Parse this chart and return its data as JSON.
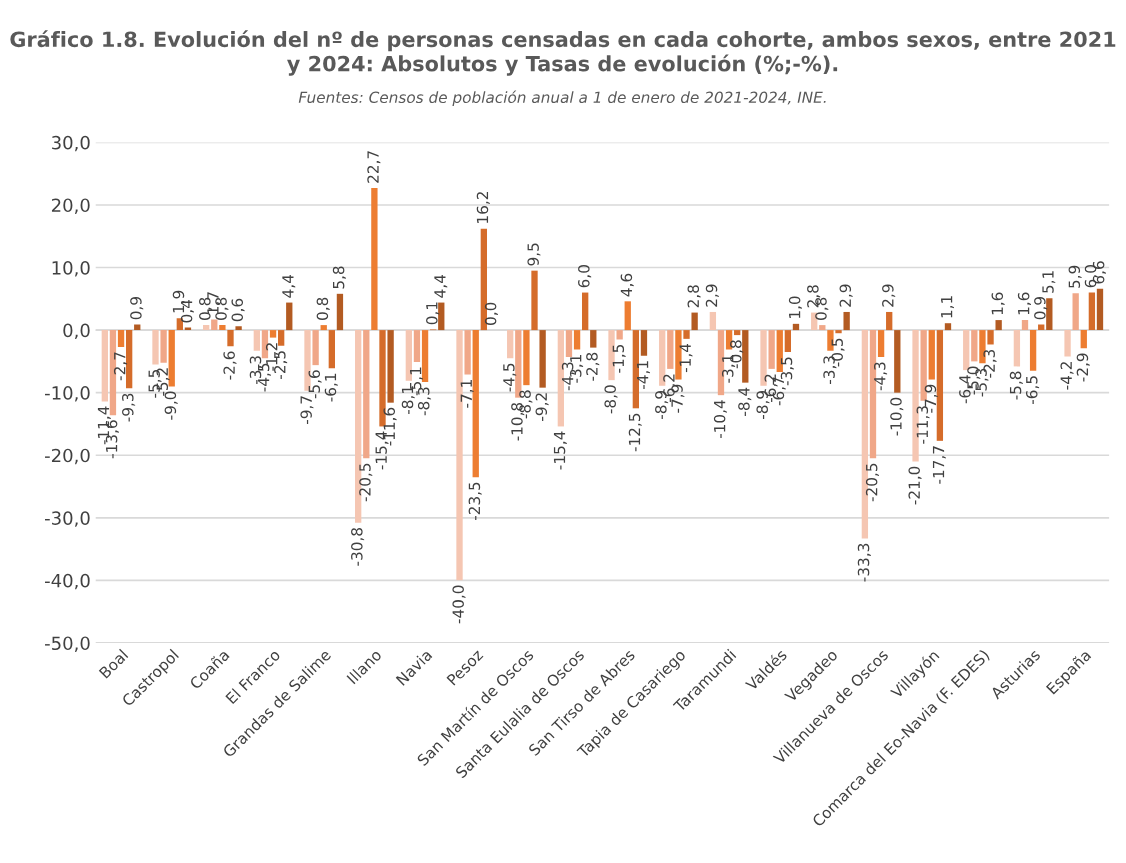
{
  "chart_data": {
    "type": "bar",
    "title": "Gráfico 1.8. Evolución del nº de personas censadas en cada cohorte, ambos sexos, entre 2021 y 2024: Absolutos y Tasas de evolución (%;-%).",
    "subtitle": "Fuentes: Censos de población anual a 1 de enero de 2021-2024, INE.",
    "categories": [
      "Boal",
      "Castropol",
      "Coaña",
      "El Franco",
      "Grandas de Salime",
      "Illano",
      "Navia",
      "Pesoz",
      "San Martín de Oscos",
      "Santa Eulalia de Oscos",
      "San Tirso de Abres",
      "Tapia de Casariego",
      "Taramundi",
      "Valdés",
      "Vegadeo",
      "Villanueva de Oscos",
      "Villayón",
      "Comarca del Eo-Navia (F. EDES)",
      "Asturias",
      "España"
    ],
    "series": [
      {
        "color": "#f5c6b2",
        "values": [
          -11.4,
          -5.5,
          0.8,
          -3.3,
          -9.7,
          -30.8,
          -8.1,
          -40.0,
          -4.5,
          -15.4,
          -8.0,
          -8.9,
          2.9,
          -8.9,
          2.8,
          -33.3,
          -21.0,
          -6.4,
          -5.8,
          -4.2
        ],
        "value_labels": [
          "-11,4",
          "-5,5",
          "0,8",
          "-3,3",
          "-9,7",
          "-30,8",
          "-8,1",
          "-40,0",
          "-4,5",
          "-15,4",
          "-8,0",
          "-8,9",
          "2,9",
          "-8,9",
          "2,8",
          "-33,3",
          "-21,0",
          "-6,4",
          "-5,8",
          "-4,2"
        ]
      },
      {
        "color": "#f0a788",
        "values": [
          -13.6,
          -5.2,
          1.7,
          -4.5,
          -5.6,
          -20.5,
          -5.1,
          -7.1,
          -10.8,
          -4.3,
          -1.5,
          -6.2,
          -10.4,
          -6.2,
          0.8,
          -20.5,
          -11.3,
          -5.0,
          1.6,
          5.9
        ],
        "value_labels": [
          "-13,6",
          "-5,2",
          "1,7",
          "-4,5",
          "-5,6",
          "-20,5",
          "-5,1",
          "-7,1",
          "-10,8",
          "-4,3",
          "-1,5",
          "-6,2",
          "-10,4",
          "-6,2",
          "0,8",
          "-20,5",
          "-11,3",
          "-5,0",
          "1,6",
          "5,9"
        ]
      },
      {
        "color": "#ed7d31",
        "values": [
          -2.7,
          -9.0,
          0.8,
          -1.2,
          0.8,
          22.7,
          -8.3,
          -23.5,
          -8.8,
          -3.1,
          4.6,
          -7.9,
          -3.1,
          -6.7,
          -3.3,
          -4.3,
          -7.9,
          -5.3,
          -6.5,
          -2.9
        ],
        "value_labels": [
          "-2,7",
          "-9,0",
          "0,8",
          "-1,2",
          "0,8",
          "22,7",
          "-8,3",
          "-23,5",
          "-8,8",
          "-3,1",
          "4,6",
          "-7,9",
          "-3,1",
          "-6,7",
          "-3,3",
          "-4,3",
          "-7,9",
          "-5,3",
          "-6,5",
          "-2,9"
        ]
      },
      {
        "color": "#d56c2a",
        "values": [
          -9.3,
          1.9,
          -2.6,
          -2.5,
          -6.1,
          -15.4,
          0.1,
          16.2,
          9.5,
          6.0,
          -12.5,
          -1.4,
          -0.8,
          -3.5,
          -0.5,
          2.9,
          -17.7,
          -2.3,
          0.9,
          6.0
        ],
        "value_labels": [
          "-9,3",
          "1,9",
          "-2,6",
          "-2,5",
          "-6,1",
          "-15,4",
          "0,1",
          "16,2",
          "9,5",
          "6,0",
          "-12,5",
          "-1,4",
          "-0,8",
          "-3,5",
          "-0,5",
          "2,9",
          "-17,7",
          "-2,3",
          "0,9",
          "6,0"
        ]
      },
      {
        "color": "#b35b22",
        "values": [
          0.9,
          0.4,
          0.6,
          4.4,
          5.8,
          -11.6,
          4.4,
          0.0,
          -9.2,
          -2.8,
          -4.1,
          2.8,
          -8.4,
          1.0,
          2.9,
          -10.0,
          1.1,
          1.6,
          5.1,
          6.6
        ],
        "value_labels": [
          "0,9",
          "0,4",
          "0,6",
          "4,4",
          "5,8",
          "-11,6",
          "4,4",
          "0,0",
          "-9,2",
          "-2,8",
          "-4,1",
          "2,8",
          "-8,4",
          "1,0",
          "2,9",
          "-10,0",
          "1,1",
          "1,6",
          "5,1",
          "6,6"
        ]
      }
    ],
    "ylim": [
      -50,
      30
    ],
    "yticks": [
      {
        "value": -50,
        "label": "-50,0"
      },
      {
        "value": -40,
        "label": "-40,0"
      },
      {
        "value": -30,
        "label": "-30,0"
      },
      {
        "value": -20,
        "label": "-20,0"
      },
      {
        "value": -10,
        "label": "-10,0"
      },
      {
        "value": 0,
        "label": "0,0"
      },
      {
        "value": 10,
        "label": "10,0"
      },
      {
        "value": 20,
        "label": "20,0"
      },
      {
        "value": 30,
        "label": "30,0"
      }
    ],
    "grid": "y",
    "legend": false
  }
}
